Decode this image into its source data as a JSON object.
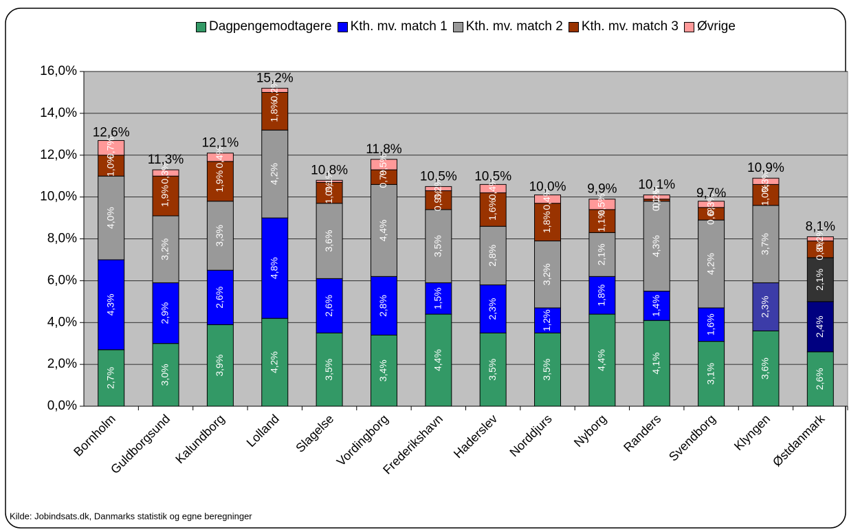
{
  "chart_data": {
    "type": "stacked_bar",
    "categories": [
      "Bornholm",
      "Guldborgsund",
      "Kalundborg",
      "Lolland",
      "Slagelse",
      "Vordingborg",
      "Frederikshavn",
      "Haderslev",
      "Norddjurs",
      "Nyborg",
      "Randers",
      "Svendborg",
      "Klyngen",
      "Østdanmark"
    ],
    "series": [
      {
        "name": "Dagpengemodtagere",
        "color": "#339966",
        "values": [
          2.7,
          3.0,
          3.9,
          4.2,
          3.5,
          3.4,
          4.4,
          3.5,
          3.5,
          4.4,
          4.1,
          3.1,
          3.6,
          2.6
        ],
        "value_labels": [
          "2,7%",
          "3,0%",
          "3,9%",
          "4,2%",
          "3,5%",
          "3,4%",
          "4,4%",
          "3,5%",
          "3,5%",
          "4,4%",
          "4,1%",
          "3,1%",
          "3,6%",
          "2,6%"
        ]
      },
      {
        "name": "Kth. mv. match 1",
        "color": "#0000ff",
        "colors": [
          "#0000ff",
          "#0000ff",
          "#0000ff",
          "#0000ff",
          "#0000ff",
          "#0000ff",
          "#0000ff",
          "#0000ff",
          "#0000ff",
          "#0000ff",
          "#0000ff",
          "#0000ff",
          "#3c3ca8",
          "#000080"
        ],
        "values": [
          4.3,
          2.9,
          2.6,
          4.8,
          2.6,
          2.8,
          1.5,
          2.3,
          1.2,
          1.8,
          1.4,
          1.6,
          2.3,
          2.4
        ],
        "value_labels": [
          "4,3%",
          "2,9%",
          "2,6%",
          "4,8%",
          "2,6%",
          "2,8%",
          "1,5%",
          "2,3%",
          "1,2%",
          "1,8%",
          "1,4%",
          "1,6%",
          "2,3%",
          "2,4%"
        ]
      },
      {
        "name": "Kth. mv. match 2",
        "color": "#999999",
        "colors": [
          "#999999",
          "#999999",
          "#999999",
          "#999999",
          "#999999",
          "#999999",
          "#999999",
          "#999999",
          "#999999",
          "#999999",
          "#999999",
          "#999999",
          "#999999",
          "#333333"
        ],
        "values": [
          4.0,
          3.2,
          3.3,
          4.2,
          3.6,
          4.4,
          3.5,
          2.8,
          3.2,
          2.1,
          4.3,
          4.2,
          3.7,
          2.1
        ],
        "value_labels": [
          "4,0%",
          "3,2%",
          "3,3%",
          "4,2%",
          "3,6%",
          "4,4%",
          "3,5%",
          "2,8%",
          "3,2%",
          "2,1%",
          "4,3%",
          "4,2%",
          "3,7%",
          "2,1%"
        ]
      },
      {
        "name": "Kth. mv. match 3",
        "color": "#993300",
        "values": [
          1.0,
          1.9,
          1.9,
          1.8,
          1.0,
          0.7,
          0.9,
          1.6,
          1.8,
          1.1,
          0.1,
          0.6,
          1.0,
          0.8
        ],
        "value_labels": [
          "1,0%",
          "1,9%",
          "1,9%",
          "1,8%",
          "1,0%",
          "0,7%",
          "0,9%",
          "1,6%",
          "1,8%",
          "1,1%",
          "0,1%",
          "0,6%",
          "1,0%",
          "0,8%"
        ]
      },
      {
        "name": "Øvrige",
        "color": "#ff9999",
        "values": [
          0.7,
          0.3,
          0.4,
          0.2,
          0.1,
          0.5,
          0.2,
          0.4,
          0.4,
          0.5,
          0.2,
          0.3,
          0.3,
          0.2
        ],
        "value_labels": [
          "0,7%",
          "0,3%",
          "0,4%",
          "0,2%",
          "0,1%",
          "0,5%",
          "0,2%",
          "0,4%",
          "0,4%",
          "0,5%",
          "0,2%",
          "0,3%",
          "0,3%",
          "0,2%"
        ]
      }
    ],
    "totals": [
      12.6,
      11.3,
      12.1,
      15.2,
      10.8,
      11.8,
      10.5,
      10.5,
      10.0,
      9.9,
      10.1,
      9.7,
      10.9,
      8.1
    ],
    "total_labels": [
      "12,6%",
      "11,3%",
      "12,1%",
      "15,2%",
      "10,8%",
      "11,8%",
      "10,5%",
      "10,5%",
      "10,0%",
      "9,9%",
      "10,1%",
      "9,7%",
      "10,9%",
      "8,1%"
    ],
    "ylim": [
      0,
      16
    ],
    "yticks": [
      {
        "value": 0,
        "label": "0,0%"
      },
      {
        "value": 2,
        "label": "2,0%"
      },
      {
        "value": 4,
        "label": "4,0%"
      },
      {
        "value": 6,
        "label": "6,0%"
      },
      {
        "value": 8,
        "label": "8,0%"
      },
      {
        "value": 10,
        "label": "10,0%"
      },
      {
        "value": 12,
        "label": "12,0%"
      },
      {
        "value": 14,
        "label": "14,0%"
      },
      {
        "value": 16,
        "label": "16,0%"
      }
    ],
    "grid": true,
    "legend": "top",
    "source": "Kilde: Jobindsats.dk, Danmarks statistik og egne beregninger"
  }
}
